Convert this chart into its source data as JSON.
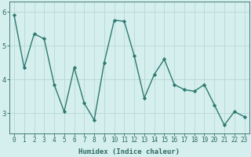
{
  "x": [
    0,
    1,
    2,
    3,
    4,
    5,
    6,
    7,
    8,
    9,
    10,
    11,
    12,
    13,
    14,
    15,
    16,
    17,
    18,
    19,
    20,
    21,
    22,
    23
  ],
  "y": [
    5.9,
    4.35,
    5.35,
    5.2,
    3.85,
    3.05,
    4.35,
    3.3,
    2.8,
    4.5,
    5.75,
    5.72,
    4.7,
    3.45,
    4.15,
    4.6,
    3.85,
    3.7,
    3.65,
    3.85,
    3.25,
    2.65,
    3.05,
    2.9
  ],
  "line_color": "#2d7a70",
  "marker": "D",
  "markersize": 2.2,
  "linewidth": 1.0,
  "bg_color": "#d5eeee",
  "grid_color": "#b8d8d8",
  "xlabel": "Humidex (Indice chaleur)",
  "xlabel_fontsize": 6.5,
  "xtick_labels": [
    "0",
    "1",
    "2",
    "3",
    "4",
    "5",
    "6",
    "7",
    "8",
    "9",
    "10",
    "11",
    "12",
    "13",
    "14",
    "15",
    "16",
    "17",
    "18",
    "19",
    "20",
    "21",
    "22",
    "23"
  ],
  "ytick_labels": [
    "3",
    "4",
    "5",
    "6"
  ],
  "yticks": [
    3,
    4,
    5,
    6
  ],
  "ylim": [
    2.4,
    6.3
  ],
  "xlim": [
    -0.5,
    23.5
  ],
  "tick_color": "#2d6a60",
  "tick_fontsize": 5.5,
  "spine_color": "#2d6a60"
}
